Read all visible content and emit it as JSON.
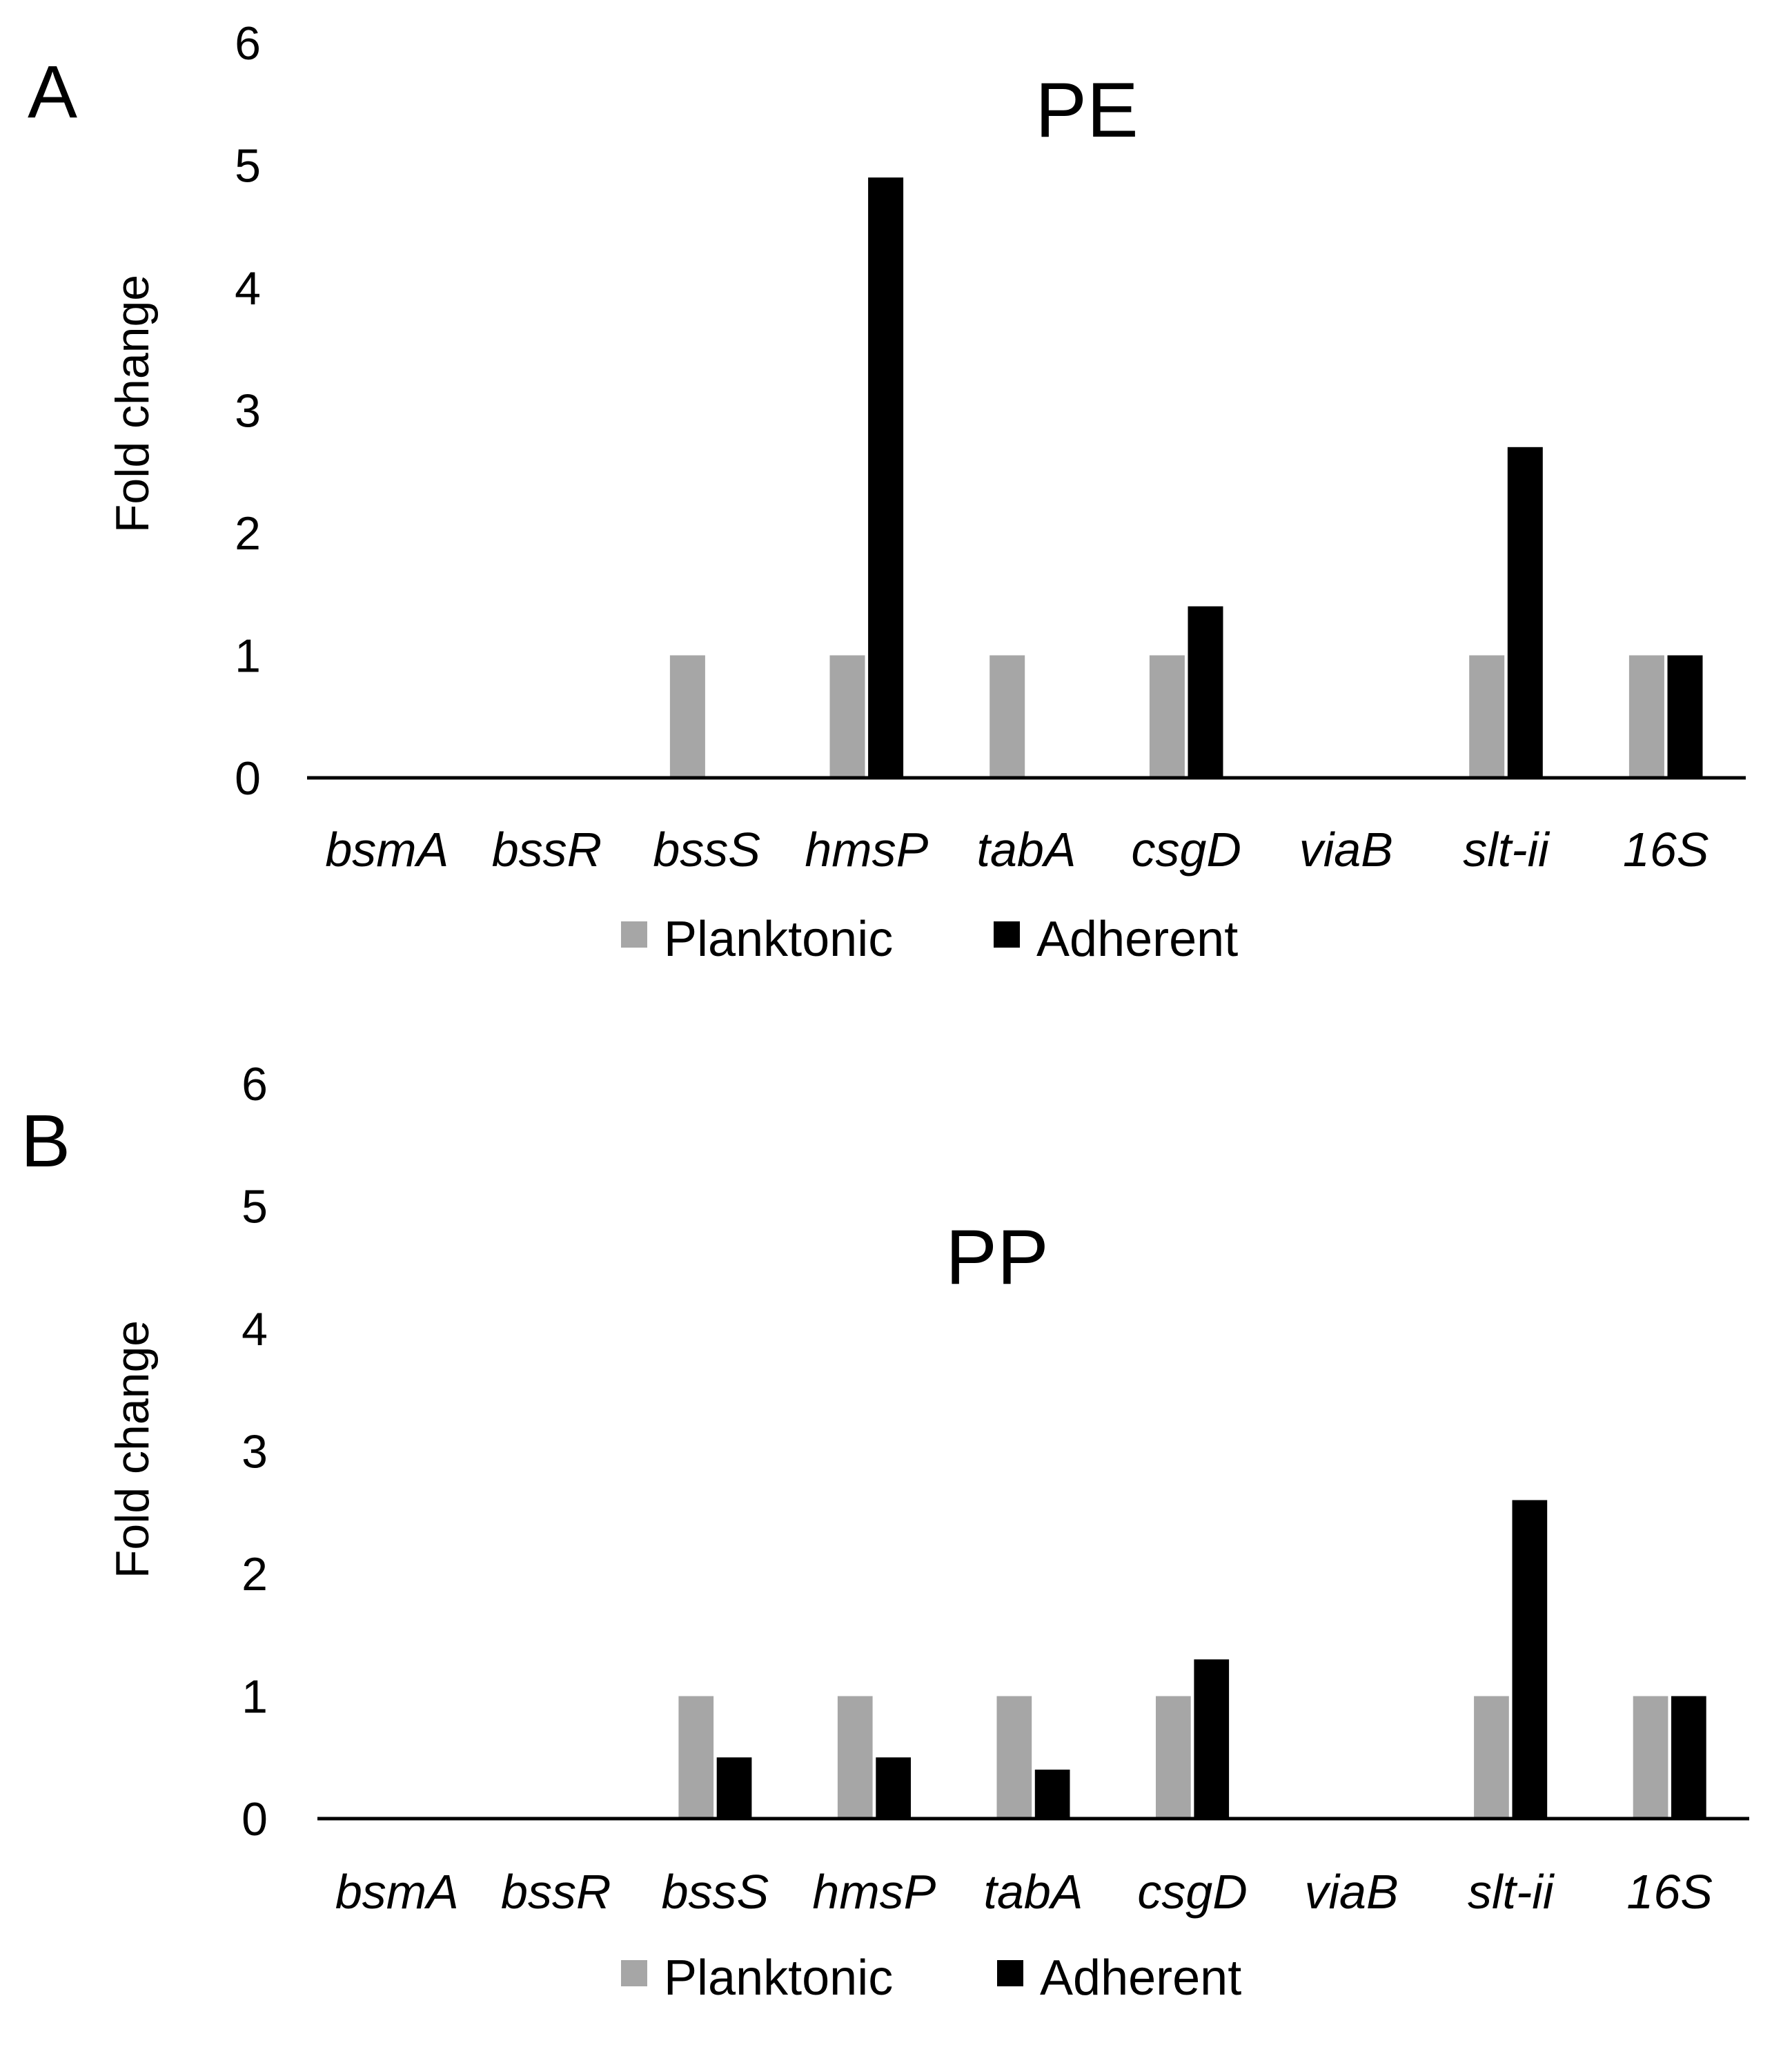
{
  "figure": {
    "colors": {
      "planktonic": "#a6a6a6",
      "adherent": "#000000",
      "axis": "#000000"
    }
  },
  "chart_data": [
    {
      "panel": "A",
      "type": "bar",
      "title": "PE",
      "xlabel": "",
      "ylabel": "Fold change",
      "ylim": [
        0,
        6
      ],
      "yticks": [
        0,
        1,
        2,
        3,
        4,
        5,
        6
      ],
      "grid": false,
      "legend_position": "bottom",
      "categories": [
        "bsmA",
        "bssR",
        "bssS",
        "hmsP",
        "tabA",
        "csgD",
        "viaB",
        "slt-ii",
        "16S"
      ],
      "series": [
        {
          "name": "Planktonic",
          "color": "#a6a6a6",
          "values": [
            0,
            0,
            1,
            1,
            1,
            1,
            0,
            1,
            1
          ]
        },
        {
          "name": "Adherent",
          "color": "#000000",
          "values": [
            0,
            0,
            0,
            4.9,
            0,
            1.4,
            0,
            2.7,
            1
          ]
        }
      ]
    },
    {
      "panel": "B",
      "type": "bar",
      "title": "PP",
      "xlabel": "",
      "ylabel": "Fold change",
      "ylim": [
        0,
        6
      ],
      "yticks": [
        0,
        1,
        2,
        3,
        4,
        5,
        6
      ],
      "grid": false,
      "legend_position": "bottom",
      "categories": [
        "bsmA",
        "bssR",
        "bssS",
        "hmsP",
        "tabA",
        "csgD",
        "viaB",
        "slt-ii",
        "16S"
      ],
      "series": [
        {
          "name": "Planktonic",
          "color": "#a6a6a6",
          "values": [
            0,
            0,
            1,
            1,
            1,
            1,
            0,
            1,
            1
          ]
        },
        {
          "name": "Adherent",
          "color": "#000000",
          "values": [
            0,
            0,
            0.5,
            0.5,
            0.4,
            1.3,
            0,
            2.6,
            1
          ]
        }
      ]
    }
  ]
}
